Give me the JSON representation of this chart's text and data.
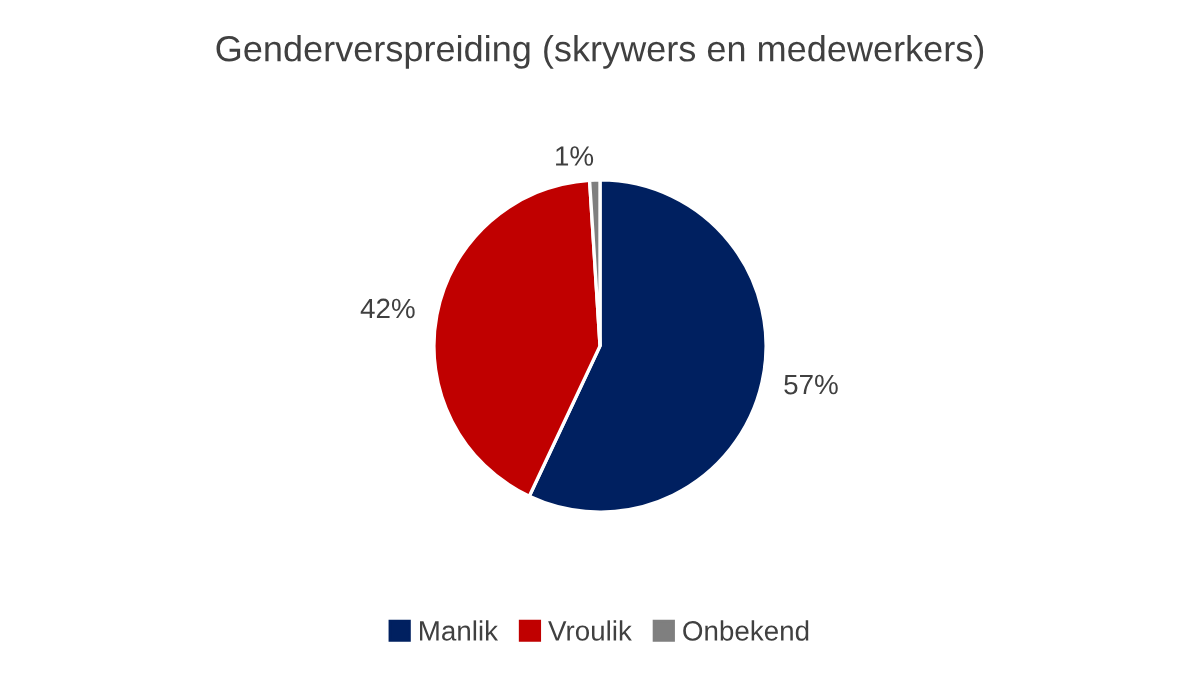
{
  "chart_data": {
    "type": "pie",
    "title": "Genderverspreiding (skrywers en medewerkers)",
    "categories": [
      "Manlik",
      "Vroulik",
      "Onbekend"
    ],
    "values": [
      57,
      42,
      1
    ],
    "value_labels": [
      "57%",
      "42%",
      "1%"
    ],
    "colors": [
      "#002060",
      "#c00000",
      "#7f7f7f"
    ],
    "legend": "bottom"
  }
}
